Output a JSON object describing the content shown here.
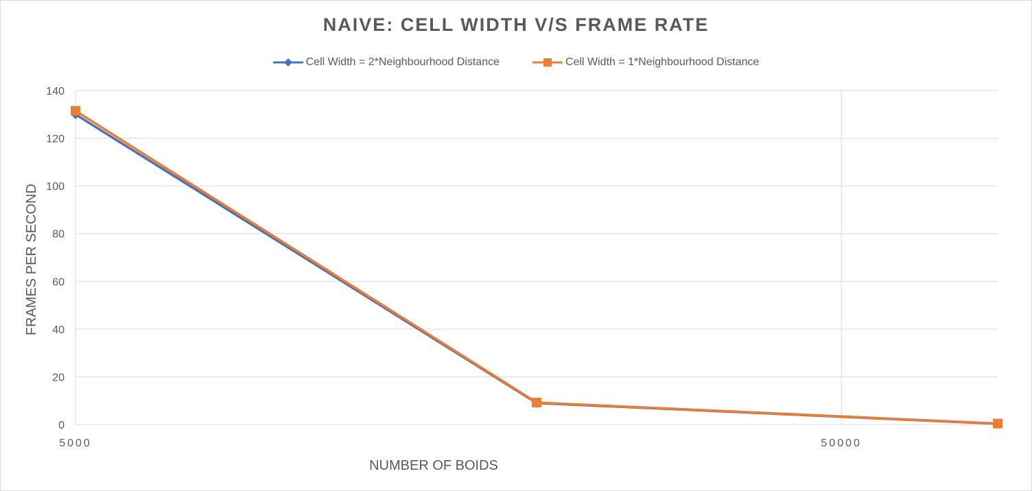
{
  "chart_data": {
    "type": "line",
    "title": "NAIVE: CELL WIDTH V/S FRAME RATE",
    "xlabel": "NUMBER OF BOIDS",
    "ylabel": "FRAMES PER SECOND",
    "x_scale": "log",
    "x": [
      5000,
      20000,
      80000
    ],
    "xticks": [
      "5000",
      "50000"
    ],
    "xtick_values": [
      5000,
      50000
    ],
    "ylim": [
      0,
      140
    ],
    "yticks": [
      0,
      20,
      40,
      60,
      80,
      100,
      120,
      140
    ],
    "grid": true,
    "legend_position": "top",
    "series": [
      {
        "name": "Cell Width = 2*Neighbourhood Distance",
        "values": [
          130,
          9,
          0.3
        ],
        "color": "#4472C4",
        "marker": "diamond"
      },
      {
        "name": "Cell Width = 1*Neighbourhood Distance",
        "values": [
          131.5,
          9.2,
          0.4
        ],
        "color": "#ED7D31",
        "marker": "square"
      }
    ]
  }
}
